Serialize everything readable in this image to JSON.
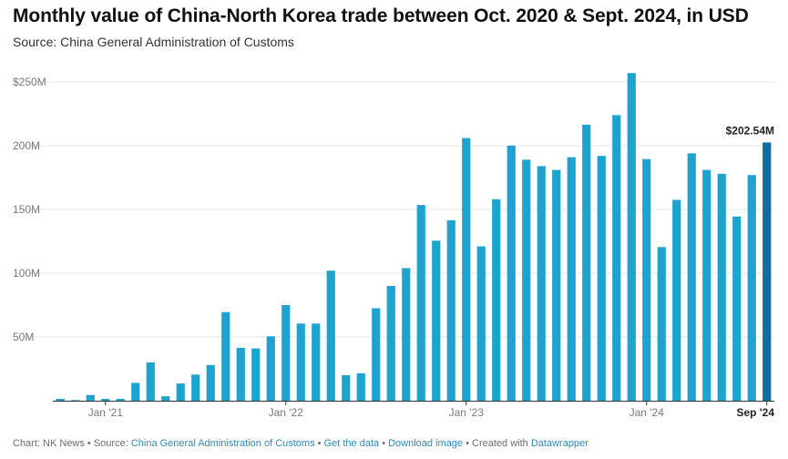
{
  "title": "Monthly value of China-North Korea trade between Oct. 2020 & Sept. 2024, in USD",
  "subtitle": "Source: China General Administration of Customs",
  "footer": {
    "chart_by": "Chart: NK News",
    "source_prefix": "Source:",
    "source_link": "China General Administration of Customs",
    "get_data": "Get the data",
    "download": "Download image",
    "created_with": "Created with",
    "tool": "Datawrapper",
    "sep": "•"
  },
  "colors": {
    "bar": "#1ea3cf",
    "bar_highlight": "#0f6e9a",
    "grid": "#e4e4e4",
    "axis": "#333333",
    "tick_text": "#7a7a7a"
  },
  "chart_data": {
    "type": "bar",
    "unit": "USD millions",
    "ylim": [
      0,
      250
    ],
    "y_ticks": [
      {
        "value": 250,
        "label": "$250M"
      },
      {
        "value": 200,
        "label": "200M"
      },
      {
        "value": 150,
        "label": "150M"
      },
      {
        "value": 100,
        "label": "100M"
      },
      {
        "value": 50,
        "label": "50M"
      }
    ],
    "x_ticks": [
      {
        "index": 3,
        "label": "Jan '21"
      },
      {
        "index": 15,
        "label": "Jan '22"
      },
      {
        "index": 27,
        "label": "Jan '23"
      },
      {
        "index": 39,
        "label": "Jan '24"
      },
      {
        "index": 47,
        "label": "Sep '24",
        "bold": true
      }
    ],
    "categories": [
      "2020-10",
      "2020-11",
      "2020-12",
      "2021-01",
      "2021-02",
      "2021-03",
      "2021-04",
      "2021-05",
      "2021-06",
      "2021-07",
      "2021-08",
      "2021-09",
      "2021-10",
      "2021-11",
      "2021-12",
      "2022-01",
      "2022-02",
      "2022-03",
      "2022-04",
      "2022-05",
      "2022-06",
      "2022-07",
      "2022-08",
      "2022-09",
      "2022-10",
      "2022-11",
      "2022-12",
      "2023-01",
      "2023-02",
      "2023-03",
      "2023-04",
      "2023-05",
      "2023-06",
      "2023-07",
      "2023-08",
      "2023-09",
      "2023-10",
      "2023-11",
      "2023-12",
      "2024-01",
      "2024-02",
      "2024-03",
      "2024-04",
      "2024-05",
      "2024-06",
      "2024-07",
      "2024-08",
      "2024-09"
    ],
    "values": [
      1.5,
      0.5,
      4.5,
      1.5,
      1.5,
      14,
      30,
      3.5,
      13.5,
      20.5,
      28,
      69.5,
      41.5,
      41,
      50.5,
      75,
      60.5,
      60.5,
      102,
      20,
      21.5,
      72.5,
      90,
      104,
      153.5,
      125.5,
      141.5,
      206,
      121,
      158,
      200,
      189,
      184,
      181,
      191,
      216.5,
      192,
      224,
      257,
      189.5,
      120.5,
      157.5,
      194,
      181,
      178,
      144.5,
      177,
      202.54
    ],
    "highlight_index": 47,
    "annotation": "$202.54M"
  }
}
